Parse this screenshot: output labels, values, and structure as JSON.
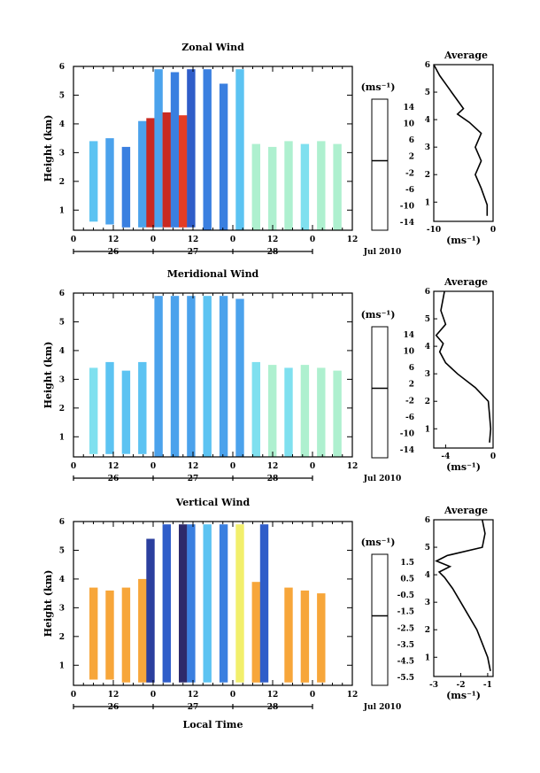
{
  "panels": [
    {
      "title": "Zonal Wind",
      "ylabel": "Height (km)",
      "yticks": [
        "1",
        "2",
        "3",
        "4",
        "5",
        "6"
      ],
      "xticks": [
        "0",
        "12",
        "0",
        "12",
        "0",
        "12",
        "0",
        "12"
      ],
      "dates": [
        "26",
        "27",
        "28"
      ],
      "month": "Jul 2010",
      "unit": "(ms⁻¹)",
      "cbar_ticks": [
        "14",
        "10",
        "6",
        "2",
        "-2",
        "-6",
        "-10",
        "-14"
      ],
      "avg_title": "Average",
      "avg_xticks": [
        "-10",
        "0"
      ],
      "avg_xlabel": "(ms⁻¹)"
    },
    {
      "title": "Meridional Wind",
      "ylabel": "Height (km)",
      "yticks": [
        "1",
        "2",
        "3",
        "4",
        "5",
        "6"
      ],
      "xticks": [
        "0",
        "12",
        "0",
        "12",
        "0",
        "12",
        "0",
        "12"
      ],
      "dates": [
        "26",
        "27",
        "28"
      ],
      "month": "Jul 2010",
      "unit": "(ms⁻¹)",
      "cbar_ticks": [
        "14",
        "10",
        "6",
        "2",
        "-2",
        "-6",
        "-10",
        "-14"
      ],
      "avg_title": "Average",
      "avg_xticks": [
        "-4",
        "0"
      ],
      "avg_xlabel": "(ms⁻¹)"
    },
    {
      "title": "Vertical Wind",
      "ylabel": "Height (km)",
      "yticks": [
        "1",
        "2",
        "3",
        "4",
        "5",
        "6"
      ],
      "xticks": [
        "0",
        "12",
        "0",
        "12",
        "0",
        "12",
        "0",
        "12"
      ],
      "dates": [
        "26",
        "27",
        "28"
      ],
      "month": "Jul 2010",
      "unit": "(ms⁻¹)",
      "cbar_ticks": [
        "1.5",
        "0.5",
        "-0.5",
        "-1.5",
        "-2.5",
        "-3.5",
        "-4.5",
        "-5.5"
      ],
      "avg_title": "Average",
      "avg_xticks": [
        "-3",
        "-2",
        "-1"
      ],
      "avg_xlabel": "(ms⁻¹)"
    }
  ],
  "xlabel": "Local Time",
  "chart_data": [
    {
      "type": "heatmap",
      "title": "Zonal Wind",
      "ylabel": "Height (km)",
      "ylim": [
        0.3,
        6
      ],
      "clim": [
        -16,
        16
      ],
      "columns": [
        {
          "t": 0.5,
          "bot": 0.6,
          "top": 3.4,
          "v": -5
        },
        {
          "t": 1.5,
          "bot": 0.5,
          "top": 3.5,
          "v": -7
        },
        {
          "t": 2.5,
          "bot": 0.4,
          "top": 3.2,
          "v": -8
        },
        {
          "t": 3.5,
          "bot": 0.4,
          "top": 4.1,
          "v": -6
        },
        {
          "t": 4.0,
          "bot": 0.4,
          "top": 4.2,
          "v": 14
        },
        {
          "t": 4.5,
          "bot": 0.4,
          "top": 5.9,
          "v": -7
        },
        {
          "t": 5.0,
          "bot": 0.4,
          "top": 4.4,
          "v": 14
        },
        {
          "t": 5.5,
          "bot": 0.4,
          "top": 5.8,
          "v": -9
        },
        {
          "t": 6.0,
          "bot": 0.4,
          "top": 4.3,
          "v": 13
        },
        {
          "t": 6.5,
          "bot": 0.4,
          "top": 5.9,
          "v": -10
        },
        {
          "t": 7.5,
          "bot": 0.3,
          "top": 5.9,
          "v": -9
        },
        {
          "t": 8.5,
          "bot": 0.3,
          "top": 5.4,
          "v": -8
        },
        {
          "t": 9.5,
          "bot": 0.3,
          "top": 5.9,
          "v": -5
        },
        {
          "t": 10.5,
          "bot": 0.3,
          "top": 3.3,
          "v": -1
        },
        {
          "t": 11.5,
          "bot": 0.3,
          "top": 3.2,
          "v": 0
        },
        {
          "t": 12.5,
          "bot": 0.3,
          "top": 3.4,
          "v": -1
        },
        {
          "t": 13.5,
          "bot": 0.3,
          "top": 3.3,
          "v": -2
        },
        {
          "t": 14.5,
          "bot": 0.3,
          "top": 3.4,
          "v": 0
        },
        {
          "t": 15.5,
          "bot": 0.3,
          "top": 3.3,
          "v": -1
        }
      ],
      "average": {
        "xlim": [
          -10,
          0
        ],
        "x": [
          -1,
          -1,
          -2,
          -3,
          -2,
          -3,
          -2,
          -4,
          -6,
          -5,
          -6,
          -7,
          -8,
          -9,
          -10
        ],
        "y": [
          0.5,
          0.9,
          1.5,
          2.0,
          2.5,
          3.0,
          3.5,
          3.9,
          4.2,
          4.4,
          4.7,
          5.0,
          5.3,
          5.6,
          6.0
        ]
      }
    },
    {
      "type": "heatmap",
      "title": "Meridional Wind",
      "ylabel": "Height (km)",
      "ylim": [
        0.3,
        6
      ],
      "clim": [
        -16,
        16
      ],
      "columns": [
        {
          "t": 0.5,
          "bot": 0.4,
          "top": 3.4,
          "v": -3
        },
        {
          "t": 1.5,
          "bot": 0.4,
          "top": 3.6,
          "v": -4
        },
        {
          "t": 2.5,
          "bot": 0.4,
          "top": 3.3,
          "v": -5
        },
        {
          "t": 3.5,
          "bot": 0.4,
          "top": 3.6,
          "v": -5
        },
        {
          "t": 4.5,
          "bot": 0.3,
          "top": 5.9,
          "v": -6
        },
        {
          "t": 5.5,
          "bot": 0.3,
          "top": 5.9,
          "v": -7
        },
        {
          "t": 6.5,
          "bot": 0.3,
          "top": 5.9,
          "v": -6
        },
        {
          "t": 7.5,
          "bot": 0.3,
          "top": 5.9,
          "v": -5
        },
        {
          "t": 8.5,
          "bot": 0.3,
          "top": 5.9,
          "v": -6
        },
        {
          "t": 9.5,
          "bot": 0.3,
          "top": 5.8,
          "v": -7
        },
        {
          "t": 10.5,
          "bot": 0.3,
          "top": 3.6,
          "v": -3
        },
        {
          "t": 11.5,
          "bot": 0.3,
          "top": 3.5,
          "v": -1
        },
        {
          "t": 12.5,
          "bot": 0.3,
          "top": 3.4,
          "v": -2
        },
        {
          "t": 13.5,
          "bot": 0.3,
          "top": 3.5,
          "v": -1
        },
        {
          "t": 14.5,
          "bot": 0.3,
          "top": 3.4,
          "v": 0
        },
        {
          "t": 15.5,
          "bot": 0.3,
          "top": 3.3,
          "v": -1
        }
      ],
      "average": {
        "xlim": [
          -5,
          0
        ],
        "x": [
          -0.3,
          -0.2,
          -0.3,
          -0.4,
          -1.5,
          -3.0,
          -4.0,
          -4.5,
          -4.2,
          -4.8,
          -4.0,
          -4.4,
          -4.1
        ],
        "y": [
          0.5,
          1.0,
          1.5,
          2.0,
          2.5,
          3.0,
          3.4,
          3.8,
          4.1,
          4.4,
          4.8,
          5.3,
          6.0
        ]
      }
    },
    {
      "type": "heatmap",
      "title": "Vertical Wind",
      "ylabel": "Height (km)",
      "ylim": [
        0.3,
        6
      ],
      "clim": [
        -6,
        2
      ],
      "columns": [
        {
          "t": 0.5,
          "bot": 0.5,
          "top": 3.7,
          "v": 0.2
        },
        {
          "t": 1.5,
          "bot": 0.5,
          "top": 3.6,
          "v": 0.3
        },
        {
          "t": 2.5,
          "bot": 0.4,
          "top": 3.7,
          "v": 0.2
        },
        {
          "t": 3.5,
          "bot": 0.4,
          "top": 4.0,
          "v": 0.0
        },
        {
          "t": 4.0,
          "bot": 0.4,
          "top": 5.4,
          "v": -5.0
        },
        {
          "t": 5.0,
          "bot": 0.4,
          "top": 5.9,
          "v": -4.5
        },
        {
          "t": 6.0,
          "bot": 0.4,
          "top": 5.9,
          "v": -5.5
        },
        {
          "t": 6.5,
          "bot": 0.4,
          "top": 5.9,
          "v": -4.0
        },
        {
          "t": 7.5,
          "bot": 0.4,
          "top": 5.9,
          "v": -3.0
        },
        {
          "t": 8.5,
          "bot": 0.4,
          "top": 5.9,
          "v": -4.0
        },
        {
          "t": 9.5,
          "bot": 0.4,
          "top": 5.9,
          "v": -1.0
        },
        {
          "t": 10.5,
          "bot": 0.4,
          "top": 3.9,
          "v": 0.2
        },
        {
          "t": 11.0,
          "bot": 0.4,
          "top": 5.9,
          "v": -4.5
        },
        {
          "t": 12.5,
          "bot": 0.4,
          "top": 3.7,
          "v": 0.3
        },
        {
          "t": 13.5,
          "bot": 0.4,
          "top": 3.6,
          "v": 0.2
        },
        {
          "t": 14.5,
          "bot": 0.4,
          "top": 3.5,
          "v": 0.2
        }
      ],
      "average": {
        "xlim": [
          -3,
          -0.8
        ],
        "x": [
          -0.9,
          -1.0,
          -1.2,
          -1.4,
          -1.7,
          -2.0,
          -2.3,
          -2.6,
          -2.8,
          -2.4,
          -2.9,
          -2.5,
          -1.2,
          -1.1,
          -1.2
        ],
        "y": [
          0.5,
          1.0,
          1.5,
          2.0,
          2.5,
          3.0,
          3.5,
          3.9,
          4.1,
          4.3,
          4.5,
          4.7,
          5.0,
          5.5,
          6.0
        ]
      }
    }
  ]
}
